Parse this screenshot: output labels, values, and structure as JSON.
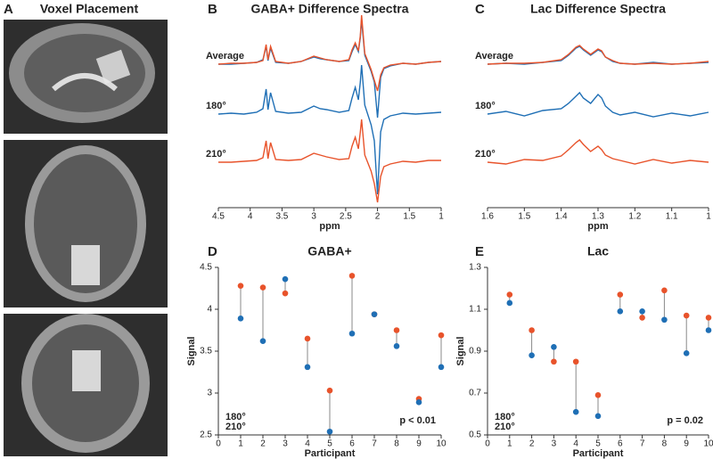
{
  "panel_a": {
    "panel": "A",
    "title": "Voxel Placement"
  },
  "chart_data": [
    {
      "type": "spectrum",
      "panel": "B",
      "title": "GABA+ Difference Spectra",
      "x_label": "ppm",
      "xlim": [
        4.5,
        1
      ],
      "xticks": [
        4.5,
        4,
        3.5,
        3,
        2.5,
        2,
        1.5,
        1
      ],
      "x": [
        4.5,
        4.3,
        4.1,
        3.9,
        3.8,
        3.75,
        3.72,
        3.68,
        3.6,
        3.4,
        3.2,
        3.0,
        2.9,
        2.8,
        2.6,
        2.45,
        2.4,
        2.35,
        2.3,
        2.27,
        2.25,
        2.2,
        2.1,
        2.05,
        2.0,
        1.95,
        1.9,
        1.8,
        1.6,
        1.4,
        1.2,
        1.0
      ],
      "series": [
        {
          "name": "Average",
          "colors": [
            "#1f6fb5",
            "#e8532b"
          ],
          "traces": [
            [
              0,
              0,
              1,
              2,
              5,
              20,
              4,
              18,
              2,
              1,
              3,
              8,
              6,
              5,
              3,
              4,
              14,
              22,
              14,
              30,
              50,
              10,
              -8,
              -20,
              -60,
              -15,
              -5,
              -2,
              1,
              0,
              2,
              3
            ],
            [
              0,
              1,
              1,
              2,
              4,
              22,
              5,
              20,
              3,
              1,
              3,
              9,
              7,
              5,
              3,
              5,
              16,
              24,
              15,
              32,
              55,
              12,
              -6,
              -18,
              -30,
              -12,
              -4,
              -1,
              1,
              0,
              2,
              3
            ]
          ]
        },
        {
          "name": "180°",
          "color": "#1f6fb5",
          "values": [
            0,
            1,
            0,
            2,
            6,
            28,
            5,
            24,
            3,
            1,
            2,
            9,
            6,
            5,
            2,
            4,
            18,
            30,
            16,
            36,
            55,
            10,
            -12,
            -30,
            -90,
            -20,
            -6,
            -2,
            1,
            0,
            1,
            2
          ]
        },
        {
          "name": "210°",
          "color": "#e8532b",
          "values": [
            0,
            0,
            1,
            2,
            5,
            24,
            4,
            22,
            3,
            2,
            3,
            10,
            8,
            6,
            3,
            4,
            18,
            28,
            15,
            34,
            48,
            8,
            -10,
            -24,
            -45,
            -16,
            -5,
            -2,
            1,
            0,
            2,
            2
          ]
        }
      ]
    },
    {
      "type": "spectrum",
      "panel": "C",
      "title": "Lac Difference Spectra",
      "x_label": "ppm",
      "xlim": [
        1.6,
        1
      ],
      "xticks": [
        1.6,
        1.5,
        1.4,
        1.3,
        1.2,
        1.1,
        1
      ],
      "x": [
        1.6,
        1.55,
        1.5,
        1.45,
        1.4,
        1.38,
        1.36,
        1.35,
        1.34,
        1.32,
        1.3,
        1.29,
        1.28,
        1.26,
        1.24,
        1.2,
        1.15,
        1.1,
        1.05,
        1.0
      ],
      "series": [
        {
          "name": "Average",
          "colors": [
            "#1f6fb5",
            "#e8532b"
          ],
          "traces": [
            [
              0,
              1,
              0,
              2,
              4,
              10,
              18,
              20,
              16,
              10,
              16,
              14,
              8,
              3,
              1,
              0,
              2,
              0,
              1,
              2
            ],
            [
              0,
              1,
              1,
              2,
              5,
              11,
              19,
              21,
              17,
              11,
              17,
              15,
              8,
              4,
              1,
              0,
              1,
              0,
              1,
              3
            ]
          ]
        },
        {
          "name": "180°",
          "color": "#1f6fb5",
          "values": [
            0,
            3,
            -2,
            4,
            6,
            12,
            20,
            24,
            18,
            12,
            22,
            18,
            9,
            2,
            -1,
            2,
            -3,
            1,
            -2,
            2
          ]
        },
        {
          "name": "210°",
          "color": "#e8532b",
          "values": [
            0,
            -2,
            3,
            2,
            7,
            14,
            22,
            25,
            20,
            12,
            18,
            14,
            8,
            4,
            2,
            -2,
            3,
            -1,
            2,
            0
          ]
        }
      ]
    },
    {
      "type": "dot",
      "panel": "D",
      "title": "GABA+",
      "x_label": "Participant",
      "y_label": "Signal",
      "annotation": "p < 0.01",
      "xlim": [
        0,
        10
      ],
      "xticks": [
        0,
        1,
        2,
        3,
        4,
        5,
        6,
        7,
        8,
        9,
        10
      ],
      "ylim": [
        2.5,
        4.5
      ],
      "yticks": [
        2.5,
        3,
        3.5,
        4,
        4.5
      ],
      "x": [
        1,
        2,
        3,
        4,
        5,
        6,
        7,
        8,
        9,
        10
      ],
      "series": [
        {
          "name": "180°",
          "color": "#1f6fb5",
          "values": [
            3.89,
            3.62,
            4.36,
            3.31,
            2.54,
            3.71,
            3.94,
            3.56,
            2.89,
            3.31
          ]
        },
        {
          "name": "210°",
          "color": "#e8532b",
          "values": [
            4.28,
            4.26,
            4.19,
            3.65,
            3.03,
            4.4,
            3.94,
            3.75,
            2.93,
            3.69
          ]
        }
      ]
    },
    {
      "type": "dot",
      "panel": "E",
      "title": "Lac",
      "x_label": "Participant",
      "y_label": "Signal",
      "annotation": "p = 0.02",
      "xlim": [
        0,
        10
      ],
      "xticks": [
        0,
        1,
        2,
        3,
        4,
        5,
        6,
        7,
        8,
        9,
        10
      ],
      "ylim": [
        0.5,
        1.3
      ],
      "yticks": [
        0.5,
        0.7,
        0.9,
        1.1,
        1.3
      ],
      "x": [
        1,
        2,
        3,
        4,
        5,
        6,
        7,
        8,
        9,
        10
      ],
      "series": [
        {
          "name": "180°",
          "color": "#1f6fb5",
          "values": [
            1.13,
            0.88,
            0.92,
            0.61,
            0.59,
            1.09,
            1.09,
            1.05,
            0.89,
            1.0
          ]
        },
        {
          "name": "210°",
          "color": "#e8532b",
          "values": [
            1.17,
            1.0,
            0.85,
            0.85,
            0.69,
            1.17,
            1.06,
            1.19,
            1.07,
            1.06
          ]
        }
      ]
    }
  ]
}
